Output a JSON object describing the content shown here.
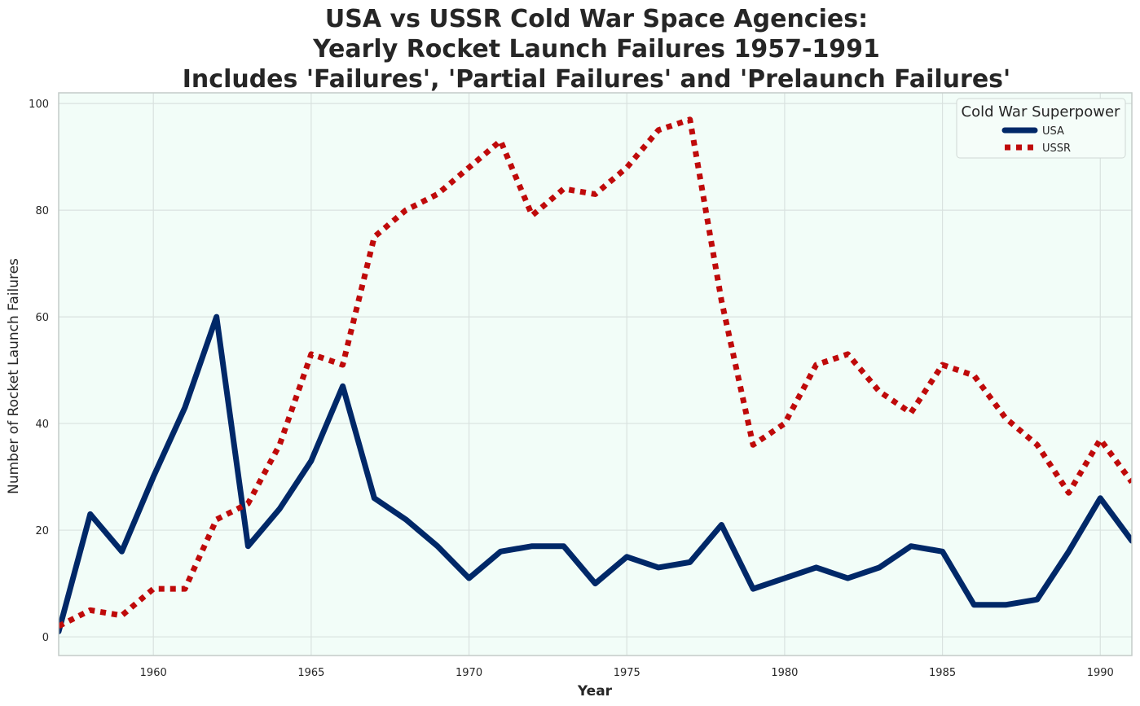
{
  "chart_data": {
    "type": "line",
    "title": [
      "USA vs USSR Cold War Space Agencies:",
      "Yearly Rocket Launch Failures 1957-1991",
      "Includes 'Failures', 'Partial Failures' and 'Prelaunch Failures'"
    ],
    "xlabel": "Year",
    "ylabel": "Number of Rocket Launch Failures",
    "xlim": [
      1957,
      1991
    ],
    "ylim": [
      -3.5,
      102
    ],
    "x_ticks": [
      1960,
      1965,
      1970,
      1975,
      1980,
      1985,
      1990
    ],
    "y_ticks": [
      0,
      20,
      40,
      60,
      80,
      100
    ],
    "grid": true,
    "legend": {
      "title": "Cold War Superpower",
      "placement": "top-right"
    },
    "background_color": "#f2fdf8",
    "grid_color": "#d9e2df",
    "x": [
      1957,
      1958,
      1959,
      1960,
      1961,
      1962,
      1963,
      1964,
      1965,
      1966,
      1967,
      1968,
      1969,
      1970,
      1971,
      1972,
      1973,
      1974,
      1975,
      1976,
      1977,
      1978,
      1979,
      1980,
      1981,
      1982,
      1983,
      1984,
      1985,
      1986,
      1987,
      1988,
      1989,
      1990,
      1991
    ],
    "series": [
      {
        "name": "USA",
        "color": "#002868",
        "style": "solid",
        "values": [
          1,
          23,
          16,
          30,
          43,
          60,
          17,
          24,
          33,
          47,
          26,
          22,
          17,
          11,
          16,
          17,
          17,
          10,
          15,
          13,
          14,
          21,
          9,
          11,
          13,
          11,
          13,
          17,
          16,
          6,
          6,
          7,
          16,
          26,
          18
        ]
      },
      {
        "name": "USSR",
        "color": "#bf0a0a",
        "style": "dotted",
        "values": [
          2,
          5,
          4,
          9,
          9,
          22,
          25,
          36,
          53,
          51,
          75,
          80,
          83,
          88,
          93,
          79,
          84,
          83,
          88,
          95,
          97,
          63,
          36,
          40,
          51,
          53,
          46,
          42,
          51,
          49,
          41,
          36,
          27,
          37,
          29
        ]
      }
    ]
  }
}
